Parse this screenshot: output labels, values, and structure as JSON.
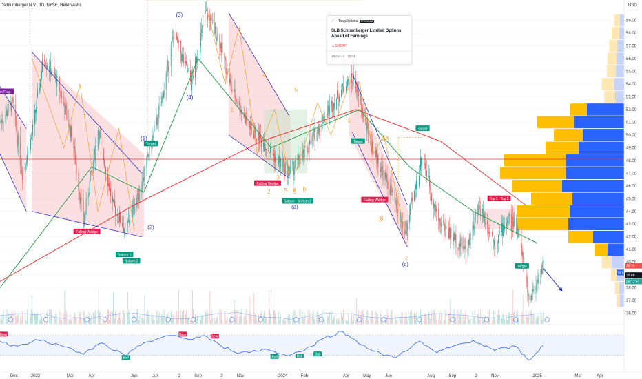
{
  "header": {
    "title": "Schlumberger N.V., 1D, NYSE, Heikin Ashi"
  },
  "idea_card": {
    "brand": "ToogOptions",
    "badge": "PREMIUM",
    "headline": "SLB Schlumberger Limited Options Ahead of Earnings",
    "direction": "SHORT",
    "date": "18 Apr 24 · 15:04"
  },
  "colors": {
    "up": "#26a69a",
    "down": "#ef5350",
    "ma_red": "#e53935",
    "ma_green": "#2e9e4f",
    "rsi": "#2962ff",
    "vp_buy": "#ffbf00",
    "vp_sell": "#2962ff",
    "wedge": "#2b35c9",
    "pattern_fill": "#f8c4c8"
  },
  "chart_data": [
    {
      "type": "candlestick",
      "title": "Schlumberger N.V., 1D, NYSE, Heikin Ashi",
      "currency": "USD",
      "ylim": [
        35.6,
        60.6
      ],
      "y_ticks": [
        "36.00",
        "37.00",
        "38.00",
        "39.00",
        "40.00",
        "41.00",
        "42.00",
        "43.00",
        "44.00",
        "45.00",
        "46.00",
        "47.00",
        "48.00",
        "49.00",
        "50.00",
        "51.00",
        "52.00",
        "53.00",
        "54.00",
        "55.00",
        "56.00",
        "57.00",
        "58.00",
        "59.00"
      ],
      "x_ticks": [
        "Dec",
        "2023",
        "Mar",
        "Apr",
        "Jun",
        "Jul",
        "2",
        "Sep",
        "3",
        "Nov",
        "2024",
        "Feb",
        "Apr",
        "May",
        "Jun",
        "Aug",
        "Sep",
        "2",
        "Nov",
        "2025",
        "Mar",
        "Apr"
      ],
      "price_path": [
        {
          "date": "2022-11-20",
          "price": 51.0
        },
        {
          "date": "2022-12-08",
          "price": 52.5
        },
        {
          "date": "2022-12-22",
          "price": 47.0
        },
        {
          "date": "2023-01-05",
          "price": 50.0
        },
        {
          "date": "2023-01-22",
          "price": 56.2
        },
        {
          "date": "2023-02-12",
          "price": 54.0
        },
        {
          "date": "2023-03-05",
          "price": 49.5
        },
        {
          "date": "2023-03-20",
          "price": 43.0
        },
        {
          "date": "2023-04-10",
          "price": 50.5
        },
        {
          "date": "2023-05-01",
          "price": 44.5
        },
        {
          "date": "2023-05-20",
          "price": 42.5
        },
        {
          "date": "2023-06-10",
          "price": 45.8
        },
        {
          "date": "2023-07-10",
          "price": 52.5
        },
        {
          "date": "2023-07-28",
          "price": 58.0
        },
        {
          "date": "2023-08-22",
          "price": 54.0
        },
        {
          "date": "2023-09-12",
          "price": 59.6
        },
        {
          "date": "2023-10-01",
          "price": 57.5
        },
        {
          "date": "2023-10-20",
          "price": 53.5
        },
        {
          "date": "2023-11-15",
          "price": 50.5
        },
        {
          "date": "2023-12-10",
          "price": 49.0
        },
        {
          "date": "2024-01-10",
          "price": 47.0
        },
        {
          "date": "2024-02-01",
          "price": 48.5
        },
        {
          "date": "2024-03-01",
          "price": 51.5
        },
        {
          "date": "2024-03-25",
          "price": 53.5
        },
        {
          "date": "2024-04-12",
          "price": 54.5
        },
        {
          "date": "2024-05-05",
          "price": 49.5
        },
        {
          "date": "2024-06-05",
          "price": 45.5
        },
        {
          "date": "2024-06-25",
          "price": 42.2
        },
        {
          "date": "2024-07-20",
          "price": 48.5
        },
        {
          "date": "2024-08-10",
          "price": 43.5
        },
        {
          "date": "2024-09-01",
          "price": 42.0
        },
        {
          "date": "2024-09-20",
          "price": 41.0
        },
        {
          "date": "2024-10-10",
          "price": 44.5
        },
        {
          "date": "2024-11-01",
          "price": 41.5
        },
        {
          "date": "2024-11-20",
          "price": 43.5
        },
        {
          "date": "2024-12-05",
          "price": 42.5
        },
        {
          "date": "2024-12-20",
          "price": 37.0
        },
        {
          "date": "2025-01-10",
          "price": 39.8
        }
      ],
      "moving_averages": [
        {
          "color": "red",
          "points": [
            {
              "date": "2022-11-20",
              "price": 38.5
            },
            {
              "date": "2023-06-01",
              "price": 44.5
            },
            {
              "date": "2023-12-01",
              "price": 49.5
            },
            {
              "date": "2024-04-15",
              "price": 52.0
            },
            {
              "date": "2024-08-15",
              "price": 49.5
            },
            {
              "date": "2024-12-15",
              "price": 44.5
            }
          ]
        },
        {
          "color": "green",
          "points": [
            {
              "date": "2022-11-20",
              "price": 38.0
            },
            {
              "date": "2023-04-01",
              "price": 47.5
            },
            {
              "date": "2023-06-15",
              "price": 45.5
            },
            {
              "date": "2023-09-01",
              "price": 56.0
            },
            {
              "date": "2023-12-15",
              "price": 49.0
            },
            {
              "date": "2024-04-20",
              "price": 52.0
            },
            {
              "date": "2024-07-01",
              "price": 47.5
            },
            {
              "date": "2024-10-01",
              "price": 44.0
            },
            {
              "date": "2025-01-01",
              "price": 41.5
            }
          ]
        }
      ],
      "horizontal_lines": [
        {
          "price": 48.1,
          "color": "red"
        }
      ],
      "price_labels": [
        {
          "value": "39.73",
          "color": "#ef5350"
        },
        {
          "value": "39.68",
          "color": "#131722"
        },
        {
          "value": "05:12:51",
          "color": "#26a69a"
        },
        {
          "value": "SLB",
          "color": "#2962ff"
        }
      ],
      "pattern_labels": [
        {
          "text": "Bullish Flag",
          "kind": "flag"
        },
        {
          "text": "Falling Wedge",
          "kind": "sell"
        },
        {
          "text": "Bottom 1",
          "kind": "buy"
        },
        {
          "text": "Bottom 2",
          "kind": "buy"
        },
        {
          "text": "Target",
          "kind": "buy"
        },
        {
          "text": "Falling Wedge",
          "kind": "sell"
        },
        {
          "text": "Bottom 1",
          "kind": "buy"
        },
        {
          "text": "Bottom 2",
          "kind": "buy"
        },
        {
          "text": "Top 1",
          "kind": "sell"
        },
        {
          "text": "Top 2",
          "kind": "sell"
        },
        {
          "text": "Target",
          "kind": "buy"
        },
        {
          "text": "Target",
          "kind": "buy"
        },
        {
          "text": "Falling Wedge",
          "kind": "sell"
        },
        {
          "text": "Top 1",
          "kind": "sell"
        },
        {
          "text": "Top 2",
          "kind": "sell"
        },
        {
          "text": "Target",
          "kind": "buy"
        }
      ],
      "wave_labels": [
        "(1)",
        "(2)",
        "(3)",
        "(4)",
        "(a)",
        "(c)",
        "1",
        "2",
        "3",
        "4",
        "5",
        "3",
        "4",
        "5",
        "1",
        "2",
        "3",
        "4",
        "5",
        "a",
        "b",
        "c"
      ],
      "volume_profile": {
        "rows": [
          {
            "price": 59.0,
            "buy": 14,
            "sell": 10
          },
          {
            "price": 58.0,
            "buy": 18,
            "sell": 12
          },
          {
            "price": 57.0,
            "buy": 20,
            "sell": 16
          },
          {
            "price": 56.0,
            "buy": 22,
            "sell": 18
          },
          {
            "price": 55.0,
            "buy": 22,
            "sell": 20
          },
          {
            "price": 54.0,
            "buy": 30,
            "sell": 24
          },
          {
            "price": 53.0,
            "buy": 26,
            "sell": 22
          },
          {
            "price": 52.0,
            "buy": 40,
            "sell": 90
          },
          {
            "price": 51.0,
            "buy": 90,
            "sell": 120
          },
          {
            "price": 50.0,
            "buy": 70,
            "sell": 100
          },
          {
            "price": 49.0,
            "buy": 80,
            "sell": 110
          },
          {
            "price": 48.0,
            "buy": 150,
            "sell": 140
          },
          {
            "price": 47.0,
            "buy": 160,
            "sell": 140
          },
          {
            "price": 46.0,
            "buy": 120,
            "sell": 150
          },
          {
            "price": 45.0,
            "buy": 100,
            "sell": 125
          },
          {
            "price": 44.0,
            "buy": 130,
            "sell": 130
          },
          {
            "price": 43.0,
            "buy": 125,
            "sell": 135
          },
          {
            "price": 42.0,
            "buy": 60,
            "sell": 75
          },
          {
            "price": 41.0,
            "buy": 30,
            "sell": 40
          },
          {
            "price": 40.0,
            "buy": 24,
            "sell": 30
          },
          {
            "price": 39.0,
            "buy": 14,
            "sell": 18
          },
          {
            "price": 38.0,
            "buy": 10,
            "sell": 12
          },
          {
            "price": 37.0,
            "buy": 8,
            "sell": 10
          }
        ]
      }
    },
    {
      "type": "line",
      "title": "RSI",
      "ylim": [
        10,
        85
      ],
      "y_ticks": [
        "80.00",
        "60.00",
        "40.00",
        "20.00"
      ],
      "bands": [
        30,
        70
      ],
      "series": [
        {
          "points": [
            {
              "date": "2022-11-20",
              "value": 58
            },
            {
              "date": "2022-12-15",
              "value": 48
            },
            {
              "date": "2023-01-10",
              "value": 62
            },
            {
              "date": "2023-02-15",
              "value": 50
            },
            {
              "date": "2023-03-20",
              "value": 32
            },
            {
              "date": "2023-04-15",
              "value": 55
            },
            {
              "date": "2023-05-20",
              "value": 28
            },
            {
              "date": "2023-06-15",
              "value": 55
            },
            {
              "date": "2023-07-20",
              "value": 70
            },
            {
              "date": "2023-08-20",
              "value": 62
            },
            {
              "date": "2023-09-10",
              "value": 70
            },
            {
              "date": "2023-10-05",
              "value": 48
            },
            {
              "date": "2023-11-01",
              "value": 35
            },
            {
              "date": "2023-12-10",
              "value": 42
            },
            {
              "date": "2024-01-05",
              "value": 30
            },
            {
              "date": "2024-02-01",
              "value": 40
            },
            {
              "date": "2024-03-01",
              "value": 65
            },
            {
              "date": "2024-03-25",
              "value": 78
            },
            {
              "date": "2024-04-15",
              "value": 60
            },
            {
              "date": "2024-05-10",
              "value": 38
            },
            {
              "date": "2024-06-10",
              "value": 25
            },
            {
              "date": "2024-07-15",
              "value": 58
            },
            {
              "date": "2024-08-10",
              "value": 35
            },
            {
              "date": "2024-09-01",
              "value": 48
            },
            {
              "date": "2024-10-01",
              "value": 60
            },
            {
              "date": "2024-11-01",
              "value": 40
            },
            {
              "date": "2024-12-01",
              "value": 48
            },
            {
              "date": "2024-12-20",
              "value": 20
            },
            {
              "date": "2025-01-10",
              "value": 50
            }
          ]
        }
      ],
      "signal_labels": [
        {
          "text": "Bear"
        },
        {
          "text": "Bull"
        },
        {
          "text": "Bear"
        },
        {
          "text": "Bear"
        },
        {
          "text": "Bull"
        },
        {
          "text": "Bull"
        },
        {
          "text": "Bull"
        }
      ]
    }
  ]
}
